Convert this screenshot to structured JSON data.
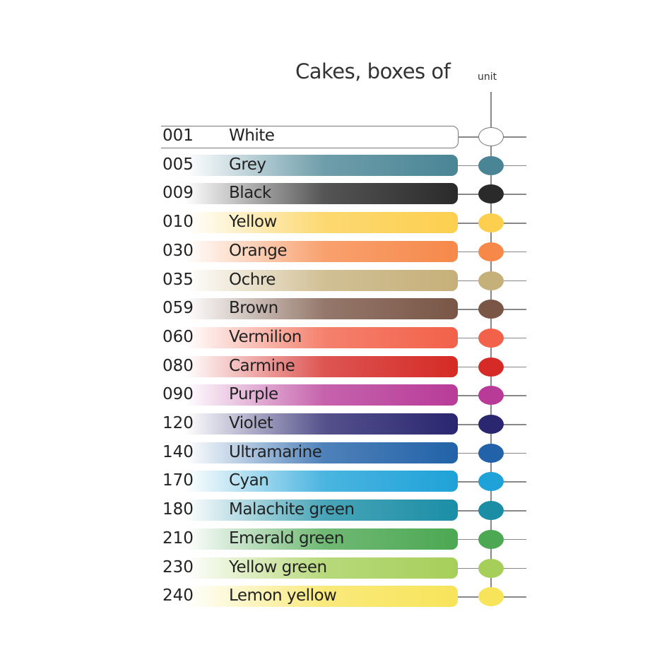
{
  "header": {
    "title": "Cakes, boxes of",
    "unit_label": "unit"
  },
  "colors": [
    {
      "code": "001",
      "name": "White",
      "color": "#ffffff"
    },
    {
      "code": "005",
      "name": "Grey",
      "color": "#4a8595"
    },
    {
      "code": "009",
      "name": "Black",
      "color": "#2a2a2a"
    },
    {
      "code": "010",
      "name": "Yellow",
      "color": "#fccf4e"
    },
    {
      "code": "030",
      "name": "Orange",
      "color": "#f6894a"
    },
    {
      "code": "035",
      "name": "Ochre",
      "color": "#c6b07a"
    },
    {
      "code": "059",
      "name": "Brown",
      "color": "#7a5646"
    },
    {
      "code": "060",
      "name": "Vermilion",
      "color": "#f26149"
    },
    {
      "code": "080",
      "name": "Carmine",
      "color": "#d52a26"
    },
    {
      "code": "090",
      "name": "Purple",
      "color": "#b83b98"
    },
    {
      "code": "120",
      "name": "Violet",
      "color": "#2a2670"
    },
    {
      "code": "140",
      "name": "Ultramarine",
      "color": "#2262a8"
    },
    {
      "code": "170",
      "name": "Cyan",
      "color": "#1ea2d8"
    },
    {
      "code": "180",
      "name": "Malachite green",
      "color": "#1b8ea6"
    },
    {
      "code": "210",
      "name": "Emerald green",
      "color": "#4ca852"
    },
    {
      "code": "230",
      "name": "Yellow green",
      "color": "#a6cf5a"
    },
    {
      "code": "240",
      "name": "Lemon yellow",
      "color": "#f8e45a"
    }
  ]
}
